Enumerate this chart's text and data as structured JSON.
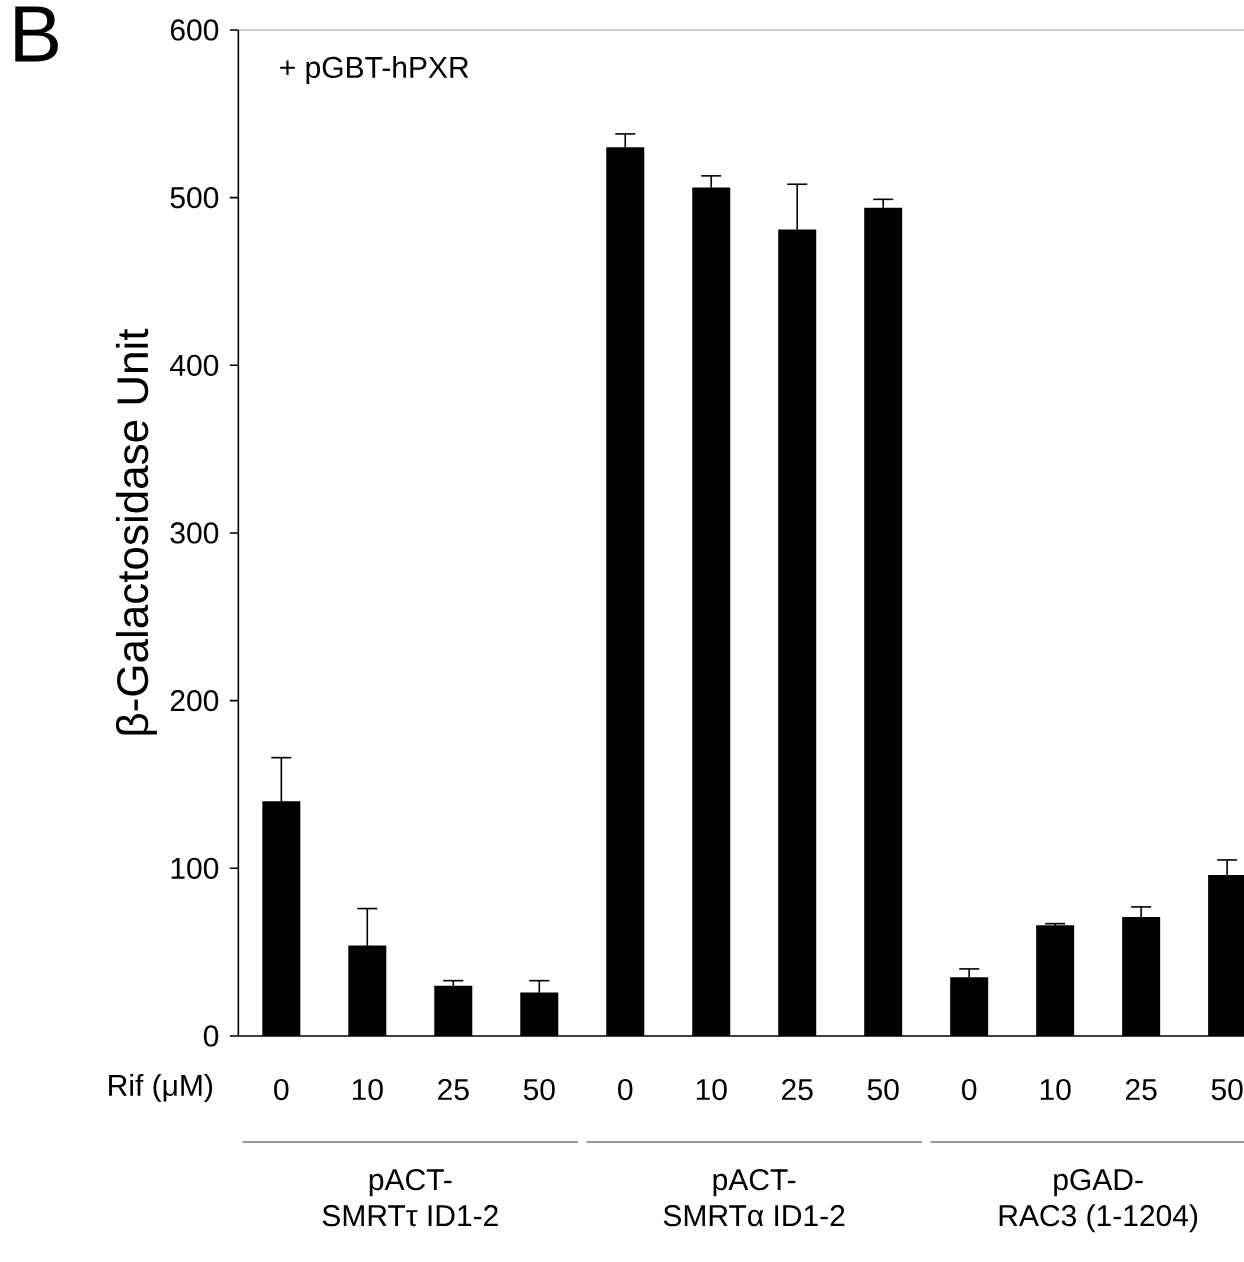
{
  "chart_data": {
    "type": "bar",
    "title": "B",
    "xlabel": "Rif (μM)",
    "ylabel": "β-Galactosidase Unit",
    "categories": [
      "0",
      "10",
      "25",
      "50",
      "0",
      "10",
      "25",
      "50",
      "0",
      "10",
      "25",
      "50"
    ],
    "values": [
      140,
      54,
      30,
      26,
      530,
      506,
      481,
      494,
      35,
      66,
      71,
      96
    ],
    "errors": [
      26,
      22,
      3,
      7,
      8,
      7,
      27,
      5,
      5,
      1,
      6,
      9
    ],
    "color": "#000000",
    "ylim": [
      0,
      600
    ],
    "yticks": [
      0,
      100,
      200,
      300,
      400,
      500,
      600
    ],
    "grid": false,
    "annotations": [
      "+ pGBT-hPXR",
      "pACT-",
      "SMRTτ ID1-2",
      "pACT-",
      "SMRTα ID1-2",
      "pGAD-",
      "RAC3 (1-1204)"
    ]
  }
}
